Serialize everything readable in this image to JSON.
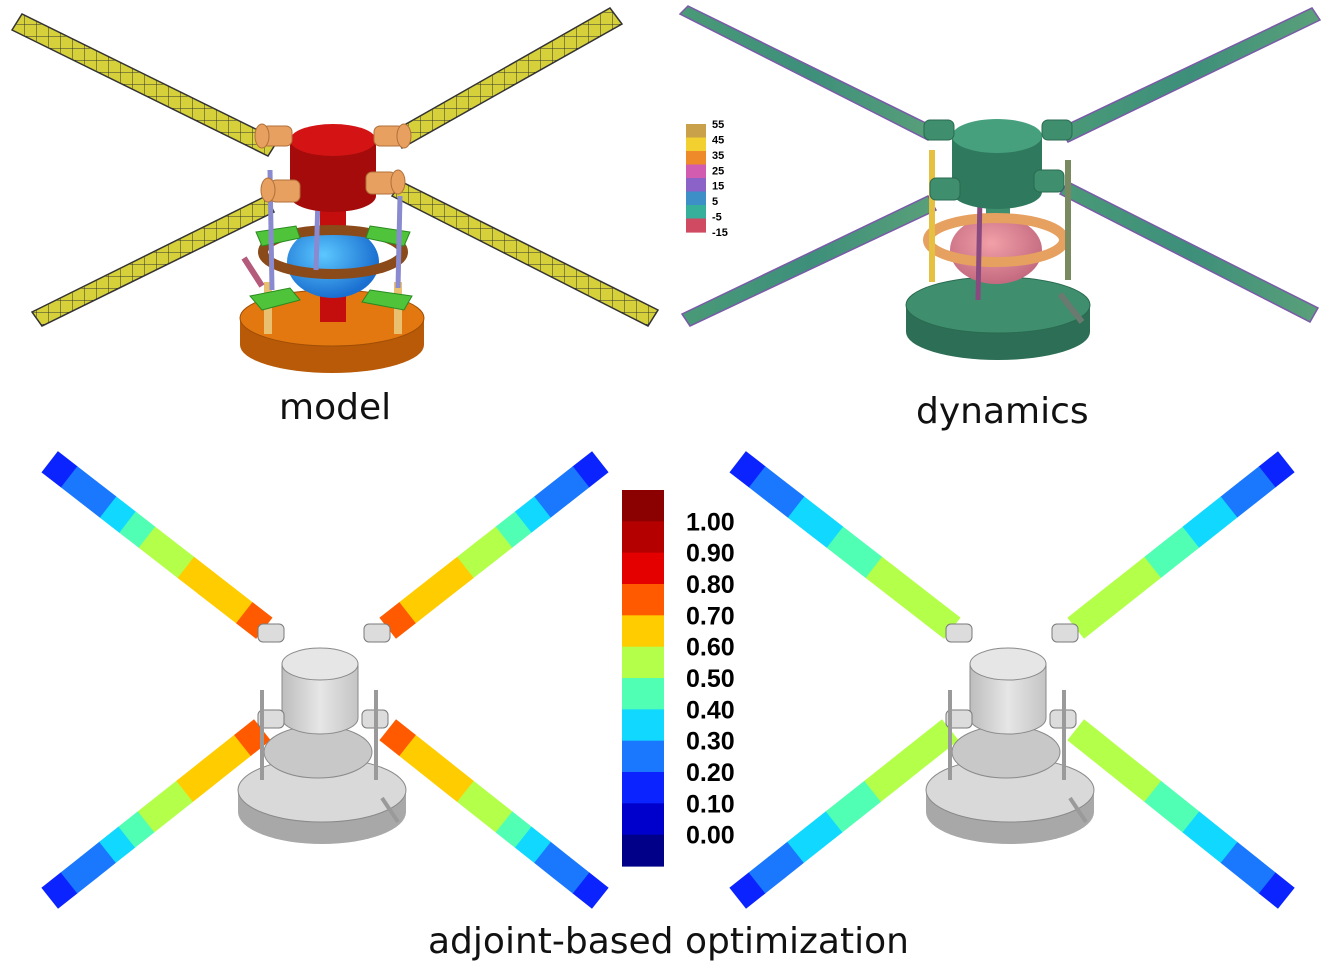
{
  "captions": {
    "model": "model",
    "dynamics": "dynamics",
    "optimization": "adjoint-based optimization"
  },
  "dynamics_legend": {
    "labels": [
      "55",
      "45",
      "35",
      "25",
      "15",
      "5",
      "-5",
      "-15"
    ],
    "colors": [
      "#c9a14a",
      "#f2d030",
      "#ee8a2a",
      "#d25cb0",
      "#8a62c8",
      "#3d8fc8",
      "#36b09a",
      "#d04a62"
    ]
  },
  "optimization_legend": {
    "labels": [
      "1.00",
      "0.90",
      "0.80",
      "0.70",
      "0.60",
      "0.50",
      "0.40",
      "0.30",
      "0.20",
      "0.10",
      "0.00"
    ],
    "colors": [
      "#8b0000",
      "#b50000",
      "#e50000",
      "#ff5a00",
      "#ffcc00",
      "#b4ff4a",
      "#50ffb4",
      "#10d8ff",
      "#1a78ff",
      "#0b24ff",
      "#0000cc",
      "#000088"
    ]
  },
  "colors": {
    "model_blade": "#d6d03a",
    "model_hub": "#c40d0d",
    "model_base": "#e2780f",
    "dyn_green": "#3f8f6f",
    "hub_gray": "#d6d6d6"
  }
}
